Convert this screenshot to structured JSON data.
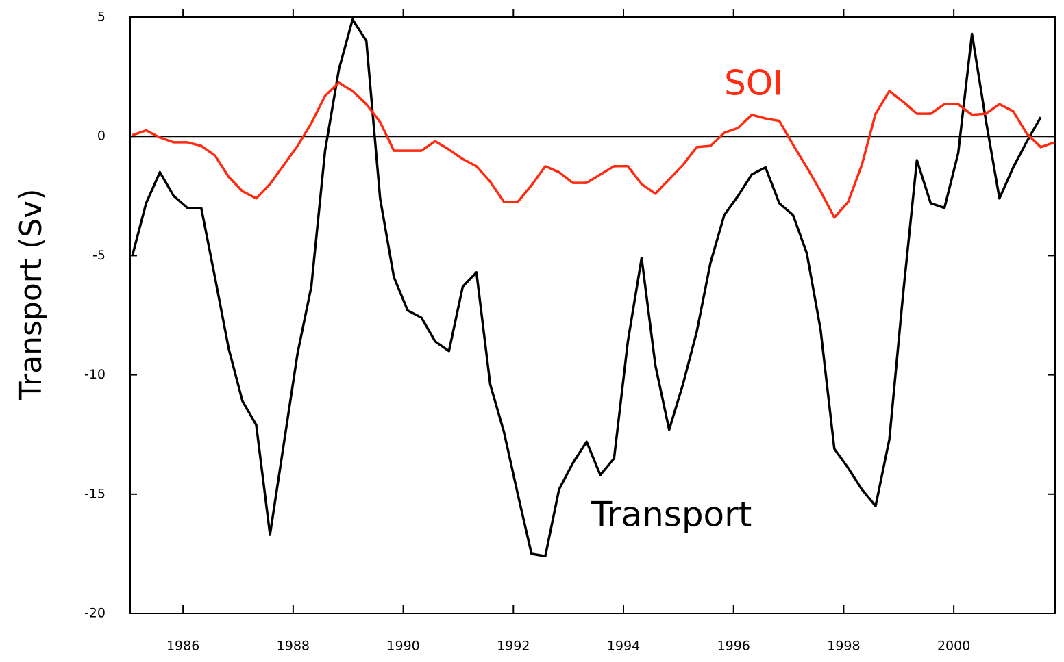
{
  "chart_data": {
    "type": "line",
    "y_label": "Transport (Sv)",
    "annotations": [
      {
        "text": "SOI",
        "color": "#ff2a10"
      },
      {
        "text": "Transport",
        "color": "#000000"
      }
    ],
    "x": [
      1985.08,
      1985.33,
      1985.58,
      1985.83,
      1986.08,
      1986.33,
      1986.58,
      1986.83,
      1987.08,
      1987.33,
      1987.58,
      1987.83,
      1988.08,
      1988.33,
      1988.58,
      1988.83,
      1989.08,
      1989.33,
      1989.58,
      1989.83,
      1990.08,
      1990.33,
      1990.58,
      1990.83,
      1991.08,
      1991.33,
      1991.58,
      1991.83,
      1992.08,
      1992.33,
      1992.58,
      1992.83,
      1993.08,
      1993.33,
      1993.58,
      1993.83,
      1994.08,
      1994.33,
      1994.58,
      1994.83,
      1995.08,
      1995.33,
      1995.58,
      1995.83,
      1996.08,
      1996.33,
      1996.58,
      1996.83,
      1997.08,
      1997.33,
      1997.58,
      1997.83,
      1998.08,
      1998.33,
      1998.58,
      1998.83,
      1999.08,
      1999.33,
      1999.58,
      1999.83,
      2000.08,
      2000.33,
      2000.58,
      2000.83,
      2001.08,
      2001.33,
      2001.58,
      2001.83
    ],
    "series": [
      {
        "name": "Transport",
        "color": "#000000",
        "values": [
          -5.0,
          -2.8,
          -1.5,
          -2.5,
          -3.0,
          -3.0,
          -5.9,
          -8.9,
          -11.1,
          -12.1,
          -16.7,
          -12.9,
          -9.1,
          -6.3,
          -0.6,
          2.8,
          4.9,
          4.0,
          -2.6,
          -5.9,
          -7.3,
          -7.6,
          -8.6,
          -9.0,
          -6.3,
          -5.7,
          -10.4,
          -12.4,
          -15.0,
          -17.5,
          -17.6,
          -14.8,
          -13.7,
          -12.8,
          -14.2,
          -13.5,
          -8.6,
          -5.1,
          -9.6,
          -12.3,
          -10.4,
          -8.2,
          -5.3,
          -3.3,
          -2.5,
          -1.6,
          -1.3,
          -2.8,
          -3.3,
          -4.9,
          -8.1,
          -13.1,
          -13.9,
          -14.8,
          -15.5,
          -12.7,
          -6.6,
          -1.0,
          -2.8,
          -3.0,
          -0.7,
          4.3,
          0.7,
          -2.6,
          -1.3,
          -0.2,
          0.8,
          null
        ]
      },
      {
        "name": "SOI",
        "color": "#ff2a10",
        "values": [
          0.05,
          0.25,
          -0.05,
          -0.25,
          -0.25,
          -0.4,
          -0.8,
          -1.7,
          -2.3,
          -2.6,
          -2.0,
          -1.2,
          -0.4,
          0.55,
          1.7,
          2.25,
          1.9,
          1.35,
          0.6,
          -0.6,
          -0.6,
          -0.6,
          -0.2,
          -0.55,
          -0.95,
          -1.25,
          -1.9,
          -2.75,
          -2.75,
          -2.05,
          -1.25,
          -1.5,
          -1.95,
          -1.95,
          -1.6,
          -1.25,
          -1.25,
          -2.0,
          -2.4,
          -1.8,
          -1.2,
          -0.45,
          -0.4,
          0.15,
          0.35,
          0.9,
          0.75,
          0.65,
          -0.35,
          -1.3,
          -2.3,
          -3.4,
          -2.75,
          -1.2,
          0.95,
          1.9,
          1.45,
          0.95,
          0.95,
          1.35,
          1.35,
          0.9,
          0.95,
          1.35,
          1.05,
          0.1,
          -0.45,
          -0.25
        ]
      }
    ],
    "xlim": [
      1985.04,
      2001.84
    ],
    "xticks": [
      1986,
      1988,
      1990,
      1992,
      1994,
      1996,
      1998,
      2000
    ],
    "ylim": [
      -20,
      5
    ],
    "yticks": [
      5,
      0,
      -5,
      -10,
      -15,
      -20
    ],
    "zero_line": true
  }
}
